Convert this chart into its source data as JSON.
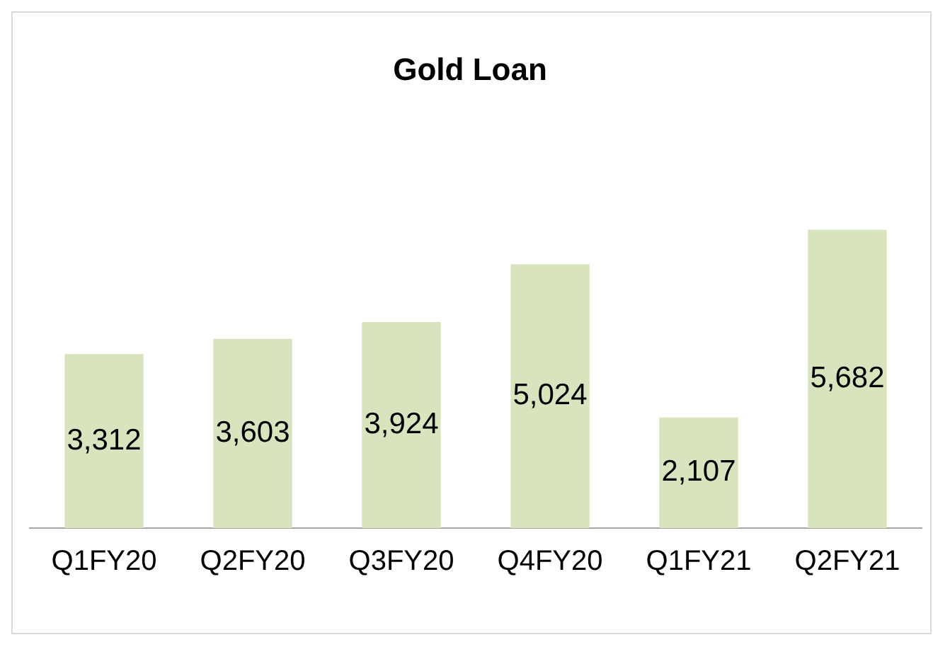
{
  "chart_data": {
    "type": "bar",
    "title": "Gold Loan",
    "categories": [
      "Q1FY20",
      "Q2FY20",
      "Q3FY20",
      "Q4FY20",
      "Q1FY21",
      "Q2FY21"
    ],
    "values": [
      3312,
      3603,
      3924,
      5024,
      2107,
      5682
    ],
    "value_labels": [
      "3,312",
      "3,603",
      "3,924",
      "5,024",
      "2,107",
      "5,682"
    ],
    "color": "#d7e4bd",
    "relative": false,
    "grid": false,
    "legend": false
  }
}
